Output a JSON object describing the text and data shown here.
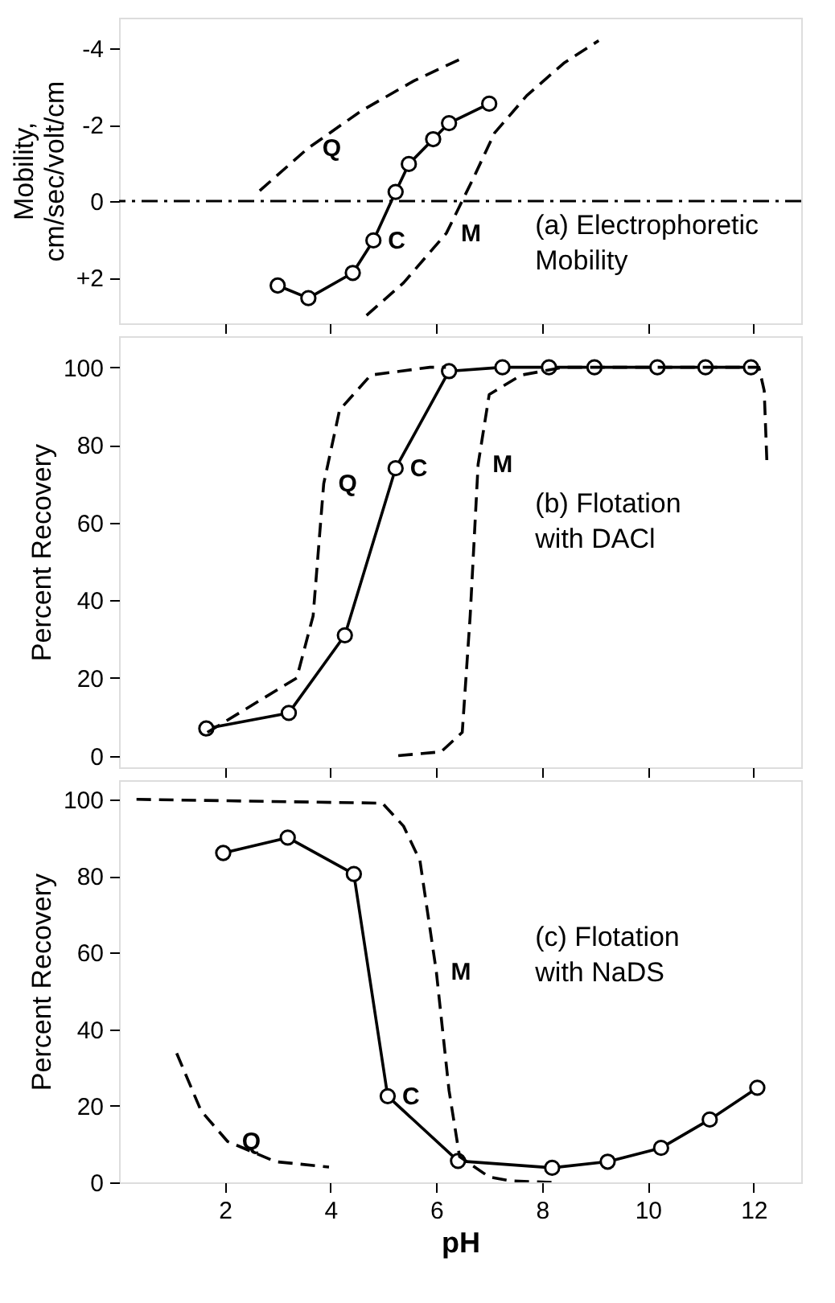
{
  "chart_data": [
    {
      "type": "line",
      "ylabel": "Mobility,\ncm/sec/volt/cm",
      "xlim": [
        0,
        12.9
      ],
      "ylim": [
        3.2,
        -4.8
      ],
      "xticks": [
        2,
        4,
        6,
        8,
        10,
        12
      ],
      "yticks": [
        -4,
        -2,
        0,
        {
          "value": 2,
          "label": "+2"
        }
      ],
      "tick_labels": "y",
      "grid": false,
      "ref_lines": [
        {
          "axis": "y",
          "value": 0,
          "line_style": "dashed",
          "color": "#000000"
        }
      ],
      "series": [
        {
          "color": "#000000",
          "marker": "circle",
          "line_style": "solid",
          "x": [
            3.0,
            3.58,
            4.42,
            4.81,
            5.23,
            5.48,
            5.94,
            6.24,
            7.0
          ],
          "values": [
            2.21,
            2.54,
            1.88,
            1.03,
            -0.24,
            -0.97,
            -1.62,
            -2.04,
            -2.55
          ]
        },
        {
          "color": "#000000",
          "marker": "none",
          "line_style": "dashed",
          "x": [
            2.66,
            3.57,
            4.58,
            5.58,
            6.49
          ],
          "values": [
            -0.27,
            -1.38,
            -2.36,
            -3.15,
            -3.74
          ]
        },
        {
          "color": "#000000",
          "marker": "none",
          "line_style": "dashed",
          "x": [
            4.68,
            5.38,
            6.19,
            6.7,
            7.1,
            7.71,
            8.41,
            9.07
          ],
          "values": [
            2.99,
            2.14,
            0.84,
            -0.6,
            -1.78,
            -2.76,
            -3.61,
            -4.2
          ]
        }
      ],
      "annotations": [
        {
          "text": "Q",
          "x": 3.57,
          "y": -1.38
        },
        {
          "text": "C",
          "x": 4.81,
          "y": 1.03
        },
        {
          "text": "M",
          "x": 6.19,
          "y": 0.84
        },
        "(a) Electrophoretic\nMobility"
      ]
    },
    {
      "type": "line",
      "ylabel": "Percent Recovery",
      "xlim": [
        0,
        12.9
      ],
      "ylim": [
        -3,
        108
      ],
      "xticks": [
        2,
        4,
        6,
        8,
        10,
        12
      ],
      "yticks": [
        0,
        20,
        40,
        60,
        80,
        100
      ],
      "tick_labels": "y",
      "grid": false,
      "series": [
        {
          "color": "#000000",
          "marker": "circle",
          "line_style": "solid",
          "x": [
            1.65,
            3.21,
            4.27,
            5.23,
            6.24,
            7.25,
            8.13,
            8.99,
            10.18,
            11.09,
            11.95
          ],
          "values": [
            7,
            11,
            31,
            74,
            99,
            100,
            100,
            100,
            100,
            100,
            100
          ]
        },
        {
          "color": "#000000",
          "marker": "none",
          "line_style": "dashed",
          "x": [
            1.67,
            3.36,
            3.67,
            3.87,
            4.17,
            4.76,
            5.88,
            6.18
          ],
          "values": [
            6,
            20,
            36,
            70,
            89,
            98,
            100,
            100
          ]
        },
        {
          "color": "#000000",
          "marker": "none",
          "line_style": "dashed",
          "x": [
            5.28,
            6.09,
            6.49,
            6.64,
            6.79,
            7.0,
            7.61,
            8.41,
            12.1,
            12.2,
            12.25
          ],
          "values": [
            0,
            1,
            6,
            36,
            75,
            93,
            98,
            100,
            100,
            94,
            76
          ]
        }
      ],
      "annotations": [
        {
          "text": "Q",
          "x": 3.87,
          "y": 70
        },
        {
          "text": "C",
          "x": 5.23,
          "y": 74
        },
        {
          "text": "M",
          "x": 6.79,
          "y": 75
        },
        "(b) Flotation\nwith DACl"
      ]
    },
    {
      "type": "line",
      "xlabel": "pH",
      "ylabel": "Percent Recovery",
      "xlim": [
        0,
        12.9
      ],
      "ylim": [
        0,
        105
      ],
      "xticks": [
        2,
        4,
        6,
        8,
        10,
        12
      ],
      "yticks": [
        0,
        20,
        40,
        60,
        80,
        100
      ],
      "grid": false,
      "series": [
        {
          "color": "#000000",
          "marker": "circle",
          "line_style": "solid",
          "x": [
            1.97,
            3.19,
            4.44,
            5.08,
            6.41,
            8.19,
            9.24,
            10.25,
            11.17,
            12.07
          ],
          "values": [
            86,
            90,
            80.5,
            22.5,
            5.6,
            3.8,
            5.4,
            9,
            16.4,
            24.7
          ]
        },
        {
          "color": "#000000",
          "marker": "none",
          "line_style": "dashed",
          "x": [
            1.09,
            1.55,
            2.05,
            2.96,
            3.97
          ],
          "values": [
            33.7,
            18.7,
            10.7,
            5.4,
            4
          ]
        },
        {
          "color": "#000000",
          "marker": "none",
          "line_style": "dashed",
          "x": [
            0.33,
            4.98,
            5.38,
            5.69,
            6.0,
            6.24,
            6.44,
            7.0,
            7.4,
            8.2
          ],
          "values": [
            100,
            99,
            93,
            84,
            55,
            24,
            6.7,
            1.4,
            0.4,
            0
          ]
        }
      ],
      "annotations": [
        {
          "text": "C",
          "x": 5.08,
          "y": 22.5
        },
        {
          "text": "M",
          "x": 6.0,
          "y": 55
        },
        {
          "text": "Q",
          "x": 2.05,
          "y": 10.7
        },
        "(c) Flotation\nwith NaDS"
      ]
    }
  ]
}
